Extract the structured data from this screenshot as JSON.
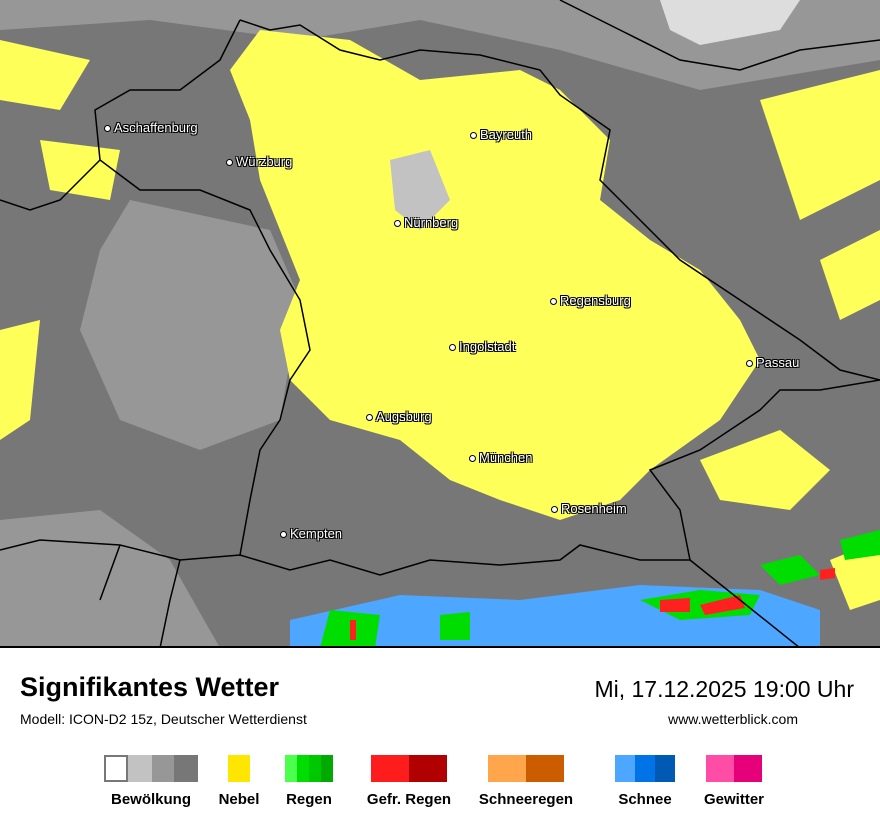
{
  "header": {
    "title": "Signifikantes Wetter",
    "subtitle": "Modell: ICON-D2 15z, Deutscher Wetterdienst",
    "datetime": "Mi, 17.12.2025 19:00 Uhr",
    "website": "www.wetterblick.com"
  },
  "map": {
    "colors": {
      "cloud_dark": "#777777",
      "cloud_mid": "#979797",
      "cloud_light": "#c2c2c2",
      "fog": "#ffff5a",
      "snow": "#4da6ff",
      "rain": "#00dd00",
      "freezing_rain": "#ff2020",
      "border": "#000000"
    },
    "cities": [
      {
        "name": "Aschaffenburg"
      },
      {
        "name": "Würzburg"
      },
      {
        "name": "Bayreuth"
      },
      {
        "name": "Nürnberg"
      },
      {
        "name": "Regensburg"
      },
      {
        "name": "Ingolstadt"
      },
      {
        "name": "Passau"
      },
      {
        "name": "Augsburg"
      },
      {
        "name": "München"
      },
      {
        "name": "Rosenheim"
      },
      {
        "name": "Kempten"
      }
    ]
  },
  "legend": [
    {
      "label": "Bewölkung",
      "colors": [
        "#ffffff",
        "#c2c2c2",
        "#979797",
        "#777777"
      ]
    },
    {
      "label": "Nebel",
      "colors": [
        "#ffe600"
      ]
    },
    {
      "label": "Regen",
      "colors": [
        "#4cff4c",
        "#00dd00",
        "#00c800",
        "#00aa00"
      ]
    },
    {
      "label": "Gefr. Regen",
      "colors": [
        "#ff1c1c",
        "#b00000"
      ]
    },
    {
      "label": "Schneeregen",
      "colors": [
        "#ffa64d",
        "#cc5c00"
      ]
    },
    {
      "label": "Schnee",
      "colors": [
        "#4da6ff",
        "#0073e6",
        "#0059b3"
      ]
    },
    {
      "label": "Gewitter",
      "colors": [
        "#ff4da6",
        "#e6007a"
      ]
    }
  ]
}
